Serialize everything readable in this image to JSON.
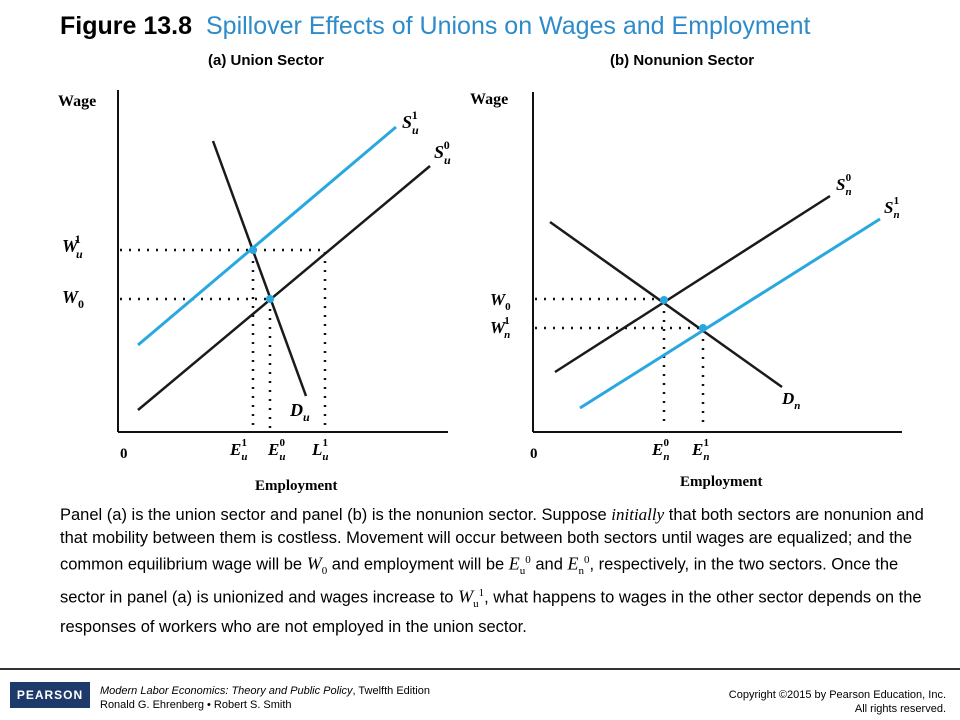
{
  "figure": {
    "number": "Figure 13.8",
    "title": "Spillover Effects of Unions on Wages and Employment"
  },
  "panel_a": {
    "title": "(a) Union Sector",
    "y_axis_label": "Wage",
    "x_axis_label": "Employment",
    "origin_label": "0",
    "wage_labels": [
      "W",
      "u",
      "1",
      "W",
      "0"
    ],
    "curve_labels": {
      "su1": [
        "S",
        "u",
        "1"
      ],
      "su0": [
        "S",
        "u",
        "0"
      ],
      "du": [
        "D",
        "u"
      ]
    },
    "employment_labels": [
      "E",
      "u",
      "1",
      "E",
      "u",
      "0",
      "L",
      "u",
      "1"
    ]
  },
  "panel_b": {
    "title": "(b) Nonunion Sector",
    "y_axis_label": "Wage",
    "x_axis_label": "Employment",
    "origin_label": "0",
    "wage_labels": [
      "W",
      "0",
      "W",
      "n",
      "1"
    ],
    "curve_labels": {
      "sn0": [
        "S",
        "n",
        "0"
      ],
      "sn1": [
        "S",
        "n",
        "1"
      ],
      "dn": [
        "D",
        "n"
      ]
    },
    "employment_labels": [
      "E",
      "n",
      "0",
      "E",
      "n",
      "1"
    ]
  },
  "colors": {
    "shifted_curve": "#29a8e0",
    "original_curve": "#1a1a1a",
    "title_accent": "#2e8bc9",
    "logo_bg": "#1d3a6b"
  },
  "caption": {
    "p1": "Panel (a) is the union sector and panel (b) is the nonunion sector.  Suppose ",
    "initially": "initially",
    "p2": " that both sectors are nonunion and that mobility between them is costless. Movement will occur between both sectors until wages are equalized; and the common equilibrium wage will be ",
    "w0": "W",
    "w0_sub": "0",
    "p3": " and employment will be ",
    "e1": "E",
    "e1_sub": "u",
    "e1_sup": "0",
    "and": " and ",
    "e2": "E",
    "e2_sub": "n",
    "e2_sup": "0",
    "p4": ", respectively, in the two sectors.  Once the sector in panel (a) is unionized and wages increase to ",
    "wu": "W",
    "wu_sub": "u",
    "wu_sup": "1",
    "p5": ", what happens to wages in the other sector depends on the responses of workers who are not employed in the union sector."
  },
  "footer": {
    "logo": "PEARSON",
    "book_title": "Modern Labor Economics: Theory and Public Policy",
    "edition": ", Twelfth Edition",
    "authors": "Ronald G. Ehrenberg • Robert S. Smith",
    "copyright": "Copyright ©2015 by Pearson Education, Inc.",
    "rights": "All rights reserved."
  }
}
